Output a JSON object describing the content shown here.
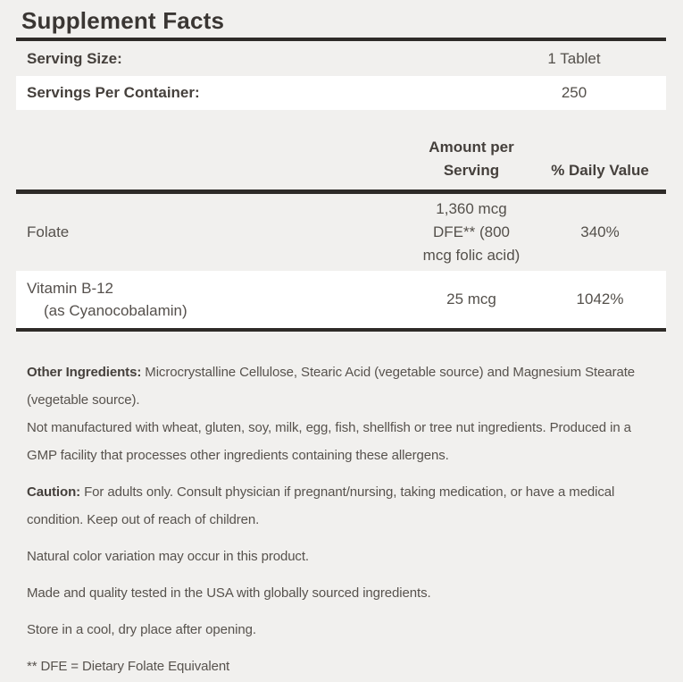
{
  "colors": {
    "background": "#f1f0ee",
    "row_highlight": "#ffffff",
    "rule": "#2e2b28",
    "title_text": "#3a3633",
    "heading_text": "#45403c",
    "body_text": "#57524d"
  },
  "label": {
    "title": "Supplement Facts",
    "serving_rows": [
      {
        "label": "Serving Size:",
        "value": "1 Tablet"
      },
      {
        "label": "Servings Per Container:",
        "value": "250"
      }
    ],
    "table": {
      "amount_header_lines": [
        "Amount per",
        "Serving"
      ],
      "daily_value_header": "% Daily Value",
      "nutrients": [
        {
          "name": "Folate",
          "sub_name": "",
          "amount_lines": [
            "1,360 mcg",
            "DFE** (800",
            "mcg folic acid)"
          ],
          "daily_value": "340%"
        },
        {
          "name": "Vitamin B-12",
          "sub_name": "(as Cyanocobalamin)",
          "amount_lines": [
            "25 mcg"
          ],
          "daily_value": "1042%"
        }
      ]
    },
    "footnotes": [
      {
        "lead": "Other Ingredients:",
        "lines": [
          "Microcrystalline Cellulose, Stearic Acid (vegetable source) and Magnesium Stearate",
          "(vegetable source)."
        ]
      },
      {
        "lead": "",
        "lines": [
          "Not manufactured with wheat, gluten, soy, milk, egg, fish, shellfish or tree nut ingredients. Produced in a",
          "GMP facility that processes other ingredients containing these allergens."
        ]
      },
      {
        "lead": "Caution:",
        "lines": [
          "For adults only. Consult physician if pregnant/nursing, taking medication, or have a medical",
          "condition. Keep out of reach of children."
        ]
      },
      {
        "lead": "",
        "lines": [
          "Natural color variation may occur in this product."
        ]
      },
      {
        "lead": "",
        "lines": [
          "Made and quality tested in the USA with globally sourced ingredients."
        ]
      },
      {
        "lead": "",
        "lines": [
          "Store in a cool, dry place after opening."
        ]
      },
      {
        "lead": "",
        "lines": [
          "** DFE = Dietary Folate Equivalent"
        ]
      }
    ]
  }
}
